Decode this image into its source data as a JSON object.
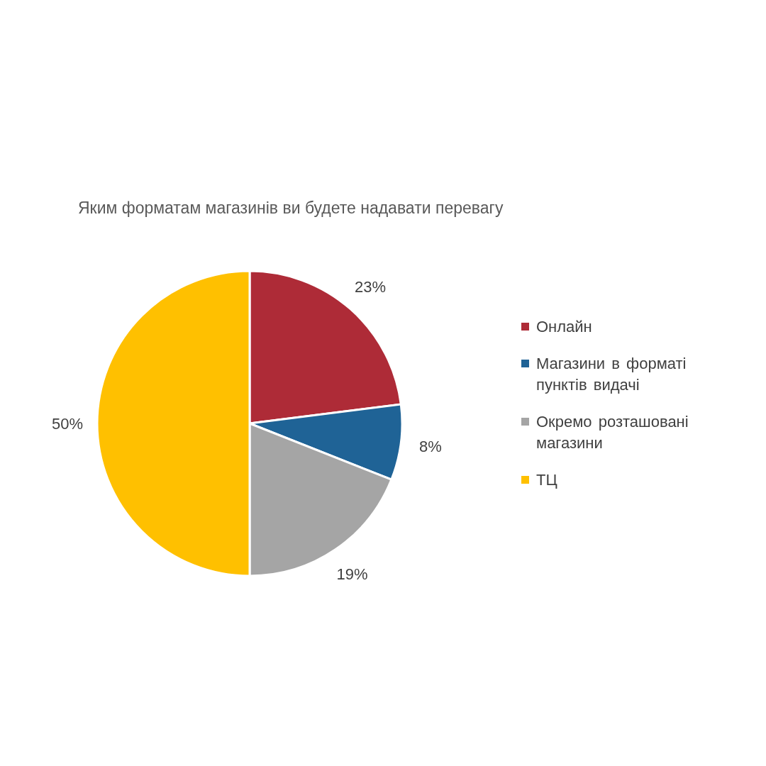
{
  "chart_data": {
    "type": "pie",
    "title": "Яким форматам магазинів ви будете надавати перевагу",
    "categories": [
      "Онлайн",
      "Магазини в форматі пунктів видачі",
      "Окремо розташовані магазини",
      "ТЦ"
    ],
    "values": [
      23,
      8,
      19,
      50
    ],
    "colors": [
      "#ae2b37",
      "#1f6396",
      "#a5a5a5",
      "#ffc000"
    ],
    "value_labels": [
      "23%",
      "8%",
      "19%",
      "50%"
    ],
    "legend": "right"
  }
}
